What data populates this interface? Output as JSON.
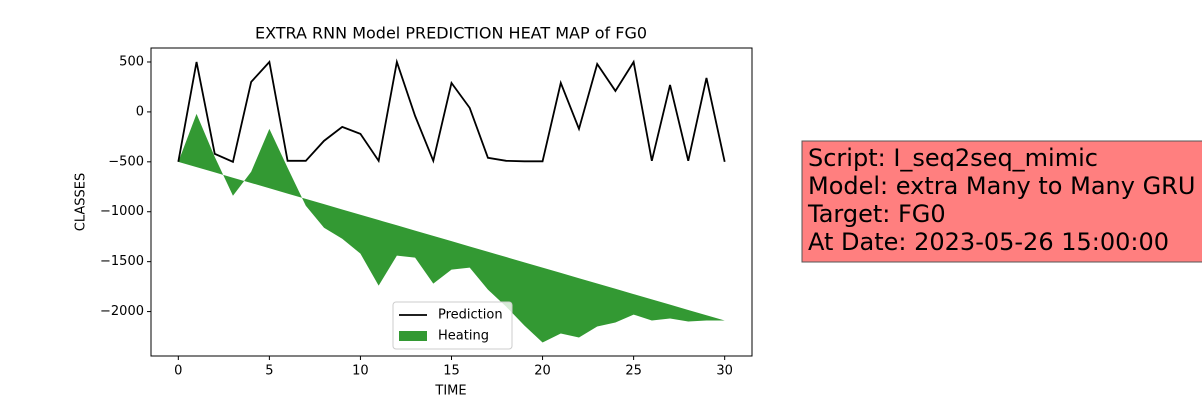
{
  "chart_data": {
    "type": "line",
    "title": "EXTRA RNN Model PREDICTION HEAT MAP of FG0",
    "x_label": "TIME",
    "y_label": "CLASSES",
    "x": [
      0,
      1,
      2,
      3,
      4,
      5,
      6,
      7,
      8,
      9,
      10,
      11,
      12,
      13,
      14,
      15,
      16,
      17,
      18,
      19,
      20,
      21,
      22,
      23,
      24,
      25,
      26,
      27,
      28,
      29,
      30
    ],
    "series": [
      {
        "name": "Prediction",
        "type": "line",
        "color": "#000000",
        "values": [
          -500,
          500,
          -420,
          -500,
          300,
          500,
          -490,
          -490,
          -290,
          -150,
          -220,
          -490,
          500,
          -40,
          -490,
          290,
          40,
          -460,
          -490,
          -495,
          -495,
          290,
          -170,
          480,
          210,
          500,
          -490,
          270,
          -490,
          340,
          -500
        ]
      },
      {
        "name": "Heating",
        "type": "area",
        "color": "#339933",
        "values": [
          -500,
          -20,
          -450,
          -840,
          -600,
          -170,
          -560,
          -940,
          -1160,
          -1270,
          -1420,
          -1740,
          -1440,
          -1460,
          -1720,
          -1580,
          -1560,
          -1780,
          -1950,
          -2140,
          -2310,
          -2220,
          -2260,
          -2150,
          -2110,
          -2030,
          -2090,
          -2070,
          -2100,
          -2090,
          -2090
        ],
        "base": [
          -500,
          -553,
          -606,
          -659,
          -712,
          -765,
          -818,
          -871,
          -924,
          -977,
          -1030,
          -1083,
          -1136,
          -1189,
          -1242,
          -1295,
          -1348,
          -1401,
          -1454,
          -1507,
          -1560,
          -1613,
          -1666,
          -1719,
          -1772,
          -1825,
          -1878,
          -1931,
          -1984,
          -2037,
          -2090
        ]
      }
    ],
    "xlim": [
      -1.5,
      31.5
    ],
    "xticks": [
      0,
      5,
      10,
      15,
      20,
      25,
      30
    ],
    "ylim": [
      -2445,
      640
    ],
    "yticks": [
      {
        "value": -2000,
        "label": "−2000"
      },
      {
        "value": -1500,
        "label": "−1500"
      },
      {
        "value": -1000,
        "label": "−1000"
      },
      {
        "value": -500,
        "label": "−500"
      },
      0,
      500
    ],
    "legend": "lower center",
    "annotation": {
      "lines": [
        "Script: I_seq2seq_mimic",
        "Model: extra Many to Many GRU",
        "Target: FG0",
        "At Date: 2023-05-26 15:00:00"
      ],
      "background": "#ff7f7f"
    }
  }
}
